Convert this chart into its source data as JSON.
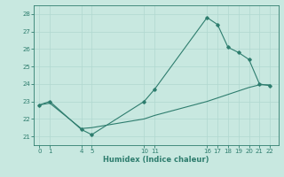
{
  "title": "",
  "xlabel": "Humidex (Indice chaleur)",
  "ylabel": "",
  "bg_color": "#c8e8e0",
  "line_color": "#2e7d6e",
  "grid_color": "#b0d8d0",
  "line1_x": [
    0,
    1,
    4,
    5,
    10,
    11,
    16,
    17,
    18,
    19,
    20,
    21,
    22
  ],
  "line1_y": [
    22.8,
    23.0,
    21.4,
    21.1,
    23.0,
    23.7,
    27.8,
    27.4,
    26.1,
    25.8,
    25.4,
    24.0,
    23.9
  ],
  "line2_x": [
    0,
    1,
    4,
    5,
    10,
    11,
    16,
    17,
    18,
    19,
    20,
    21,
    22
  ],
  "line2_y": [
    22.8,
    22.9,
    21.45,
    21.5,
    22.0,
    22.2,
    23.0,
    23.2,
    23.4,
    23.6,
    23.8,
    23.95,
    23.95
  ],
  "xticks": [
    0,
    1,
    4,
    5,
    10,
    11,
    16,
    17,
    18,
    19,
    20,
    21,
    22
  ],
  "yticks": [
    21,
    22,
    23,
    24,
    25,
    26,
    27,
    28
  ],
  "xlim": [
    -0.5,
    22.8
  ],
  "ylim": [
    20.5,
    28.5
  ]
}
